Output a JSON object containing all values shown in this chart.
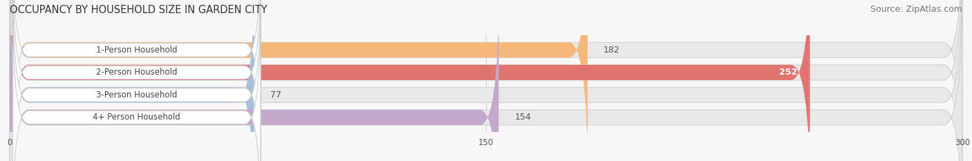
{
  "title": "OCCUPANCY BY HOUSEHOLD SIZE IN GARDEN CITY",
  "source": "Source: ZipAtlas.com",
  "categories": [
    "1-Person Household",
    "2-Person Household",
    "3-Person Household",
    "4+ Person Household"
  ],
  "values": [
    182,
    252,
    77,
    154
  ],
  "bar_colors": [
    "#F5B87A",
    "#E07470",
    "#AABFDD",
    "#C4A8CC"
  ],
  "xlim": [
    0,
    300
  ],
  "xticks": [
    0,
    150,
    300
  ],
  "label_inside_colors": [
    "#ffffff",
    "#ffffff"
  ],
  "background_color": "#f7f7f7",
  "bar_bg_color": "#e8e8e8",
  "bar_bg_edge_color": "#d0d0d0",
  "title_fontsize": 10.5,
  "source_fontsize": 9,
  "value_fontsize": 9,
  "category_fontsize": 8.5,
  "label_box_color": "#ffffff",
  "label_box_edge_color": "#cccccc"
}
